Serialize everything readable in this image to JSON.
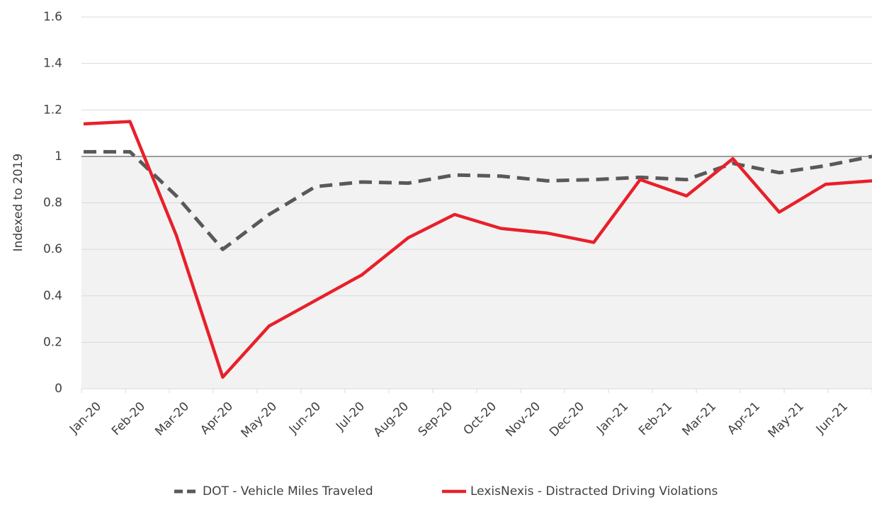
{
  "chart_data": {
    "type": "line",
    "ylabel": "Indexed to 2019",
    "categories": [
      "Jan-20",
      "Feb-20",
      "Mar-20",
      "Apr-20",
      "May-20",
      "Jun-20",
      "Jul-20",
      "Aug-20",
      "Sep-20",
      "Oct-20",
      "Nov-20",
      "Dec-20",
      "Jan-21",
      "Feb-21",
      "Mar-21",
      "Apr-21",
      "May-21",
      "Jun-21"
    ],
    "series": [
      {
        "name": "DOT - Vehicle Miles Traveled",
        "color": "#595959",
        "dash": true,
        "values": [
          1.02,
          1.02,
          0.83,
          0.6,
          0.75,
          0.87,
          0.89,
          0.885,
          0.92,
          0.915,
          0.895,
          0.9,
          0.91,
          0.9,
          0.97,
          0.93,
          0.96,
          1.0
        ]
      },
      {
        "name": "LexisNexis - Distracted Driving Violations",
        "color": "#e8202a",
        "dash": false,
        "values": [
          1.14,
          1.15,
          0.66,
          0.05,
          0.27,
          0.38,
          0.49,
          0.65,
          0.75,
          0.69,
          0.67,
          0.63,
          0.9,
          0.83,
          0.99,
          0.76,
          0.88,
          0.895
        ]
      }
    ],
    "ylim": [
      0,
      1.6
    ],
    "yticks": [
      0,
      0.2,
      0.4,
      0.6,
      0.8,
      1,
      1.2,
      1.4,
      1.6
    ],
    "baseline": 1,
    "grid": true,
    "legend": "bottom"
  }
}
